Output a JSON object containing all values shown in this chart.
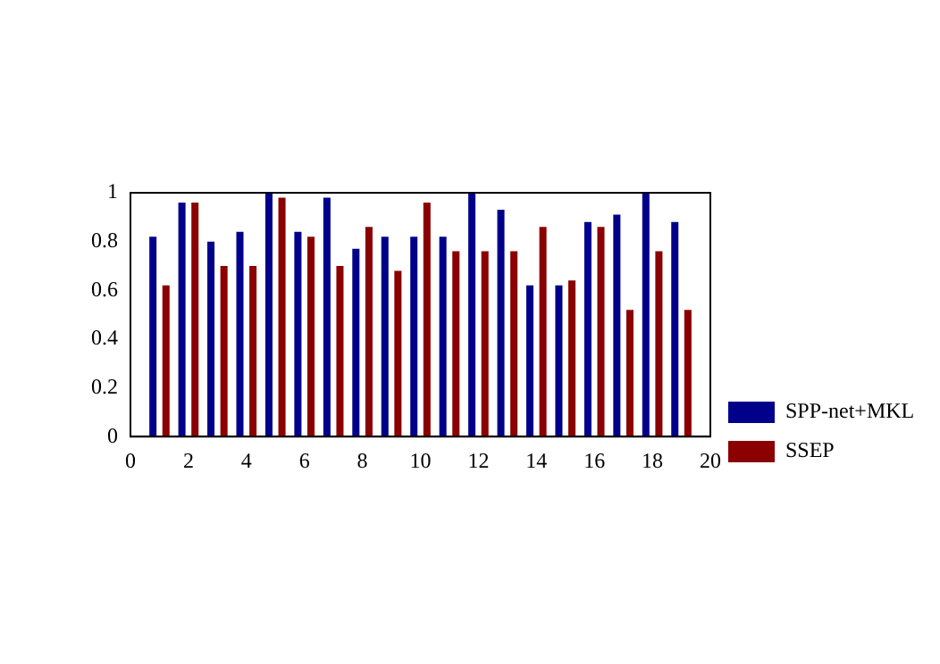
{
  "chart_data": {
    "type": "bar",
    "x": [
      1,
      2,
      3,
      4,
      5,
      6,
      7,
      8,
      9,
      10,
      11,
      12,
      13,
      14,
      15,
      16,
      17,
      18,
      19
    ],
    "series": [
      {
        "name": "SPP-net+MKL",
        "color": "#00008b",
        "values": [
          0.82,
          0.96,
          0.8,
          0.84,
          1.0,
          0.84,
          0.98,
          0.77,
          0.82,
          0.82,
          0.82,
          1.0,
          0.93,
          0.62,
          0.62,
          0.88,
          0.91,
          1.0,
          0.88
        ]
      },
      {
        "name": "SSEP",
        "color": "#8b0000",
        "values": [
          0.62,
          0.96,
          0.7,
          0.7,
          0.98,
          0.82,
          0.7,
          0.86,
          0.68,
          0.96,
          0.76,
          0.76,
          0.76,
          0.86,
          0.64,
          0.86,
          0.52,
          0.76,
          0.52
        ]
      }
    ],
    "xlim": [
      0,
      20
    ],
    "xticks": [
      0,
      2,
      4,
      6,
      8,
      10,
      12,
      14,
      16,
      18,
      20
    ],
    "ylim": [
      0,
      1
    ],
    "yticks": [
      0,
      0.2,
      0.4,
      0.6,
      0.8,
      1
    ],
    "grid": false,
    "legend": "right"
  }
}
